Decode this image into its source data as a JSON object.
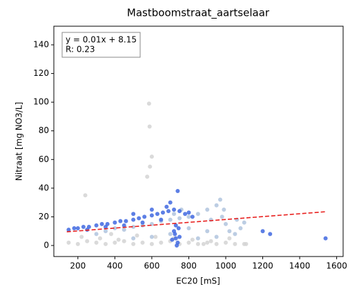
{
  "chart_data": {
    "type": "scatter",
    "title": "Mastboomstraat_aartselaar",
    "x_label": "EC20 [mS]",
    "y_label": "Nitraat [mg NO3/L]",
    "annotation": [
      "y = 0.01x + 8.15",
      "R: 0.23"
    ],
    "xlim": [
      70,
      1635
    ],
    "ylim": [
      -7.7,
      153
    ],
    "xticks": [
      200,
      400,
      600,
      800,
      1000,
      1200,
      1400,
      1600
    ],
    "yticks": [
      0,
      20,
      40,
      60,
      80,
      100,
      120,
      140
    ],
    "grid": false,
    "series": [
      {
        "color": "#d3d3d3",
        "x": [
          150,
          200,
          250,
          300,
          350,
          400,
          450,
          500,
          550,
          600,
          650,
          700,
          750,
          800,
          850,
          900,
          950,
          1000,
          1050,
          1100,
          220,
          320,
          420,
          520,
          620,
          720,
          820,
          920,
          1020,
          585,
          588,
          590,
          575,
          600,
          240,
          1110,
          880,
          380
        ],
        "values": [
          2,
          1,
          3,
          2,
          1,
          2,
          3,
          1,
          2,
          1,
          2,
          3,
          1,
          2,
          1,
          2,
          1,
          2,
          1,
          1,
          6,
          5,
          4,
          7,
          6,
          5,
          4,
          3,
          5,
          99,
          83,
          55,
          48,
          62,
          35,
          1,
          1,
          8
        ]
      },
      {
        "color": "#b0c4de",
        "x": [
          300,
          350,
          400,
          450,
          500,
          550,
          600,
          650,
          700,
          750,
          800,
          850,
          900,
          950,
          970,
          990,
          1000,
          1020,
          1050,
          1080,
          1100,
          900,
          850,
          950,
          700,
          600,
          500,
          800,
          920,
          980,
          1060,
          760,
          720
        ],
        "values": [
          8,
          10,
          12,
          11,
          13,
          14,
          15,
          17,
          18,
          19,
          20,
          22,
          25,
          28,
          32,
          25,
          15,
          10,
          8,
          12,
          16,
          10,
          5,
          6,
          8,
          6,
          5,
          12,
          18,
          20,
          18,
          25,
          22
        ]
      },
      {
        "color": "#4169e1",
        "x": [
          150,
          180,
          200,
          230,
          260,
          300,
          330,
          360,
          400,
          430,
          460,
          500,
          530,
          560,
          600,
          630,
          660,
          690,
          720,
          750,
          780,
          800,
          820,
          700,
          740,
          650,
          550,
          450,
          350,
          250,
          720,
          730,
          740,
          735,
          725,
          745,
          710,
          750,
          730,
          1540,
          1200,
          1240,
          500,
          600,
          680
        ],
        "values": [
          11,
          12,
          12,
          13,
          13,
          14,
          15,
          15,
          16,
          17,
          17,
          18,
          19,
          20,
          21,
          22,
          23,
          24,
          25,
          24,
          22,
          23,
          20,
          30,
          38,
          18,
          16,
          14,
          13,
          11,
          10,
          5,
          2,
          0,
          8,
          12,
          4,
          6,
          14,
          5,
          10,
          8,
          22,
          25,
          27
        ]
      }
    ],
    "fit_line": {
      "x": [
        140,
        1540
      ],
      "values": [
        9.55,
        23.55
      ],
      "color": "#e8201e",
      "style": "dashed"
    }
  }
}
